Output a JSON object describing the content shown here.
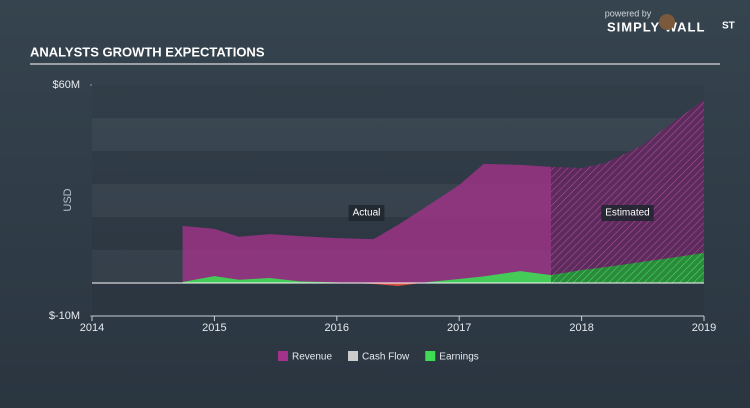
{
  "branding": {
    "powered_by": "powered by",
    "name": "SIMPLY WALL",
    "suffix": "ST"
  },
  "chart_data": {
    "type": "area",
    "title": "ANALYSTS GROWTH EXPECTATIONS",
    "y_label": "USD",
    "x": [
      2014.74,
      2015.0,
      2015.2,
      2015.45,
      2015.7,
      2016.0,
      2016.3,
      2016.5,
      2016.75,
      2017.0,
      2017.2,
      2017.5,
      2017.75,
      2018.0,
      2018.2,
      2018.5,
      2018.75,
      2019.0
    ],
    "series": [
      {
        "name": "Revenue",
        "color": "#a3338a",
        "values": [
          17.3,
          16.4,
          14.0,
          14.8,
          14.2,
          13.6,
          13.3,
          17.6,
          23.6,
          29.7,
          36.1,
          35.8,
          35.2,
          34.8,
          36.4,
          41.8,
          48.8,
          55.5
        ]
      },
      {
        "name": "Cash Flow",
        "color": "#cccccc",
        "values": [
          null,
          null,
          null,
          null,
          null,
          null,
          null,
          null,
          null,
          null,
          null,
          null,
          null,
          null,
          null,
          null,
          null,
          null
        ]
      },
      {
        "name": "Earnings",
        "color": "#3ddc54",
        "negative_color": "#e8553f",
        "values": [
          0.3,
          2.1,
          1.0,
          1.5,
          0.5,
          0.2,
          -0.3,
          -0.9,
          0.3,
          1.2,
          2.0,
          3.6,
          2.4,
          3.9,
          4.8,
          6.4,
          7.7,
          9.1
        ]
      }
    ],
    "forecast_start": 2017.75,
    "annotations": [
      "Actual",
      "Estimated"
    ],
    "xlim": [
      2014,
      2019
    ],
    "xticks": [
      2014,
      2015,
      2016,
      2017,
      2018,
      2019
    ],
    "ylim": [
      -10,
      60
    ],
    "yticks": [
      {
        "value": 60,
        "label": "$60M"
      },
      {
        "value": -10,
        "label": "$-10M"
      }
    ],
    "legend": "bottom"
  }
}
